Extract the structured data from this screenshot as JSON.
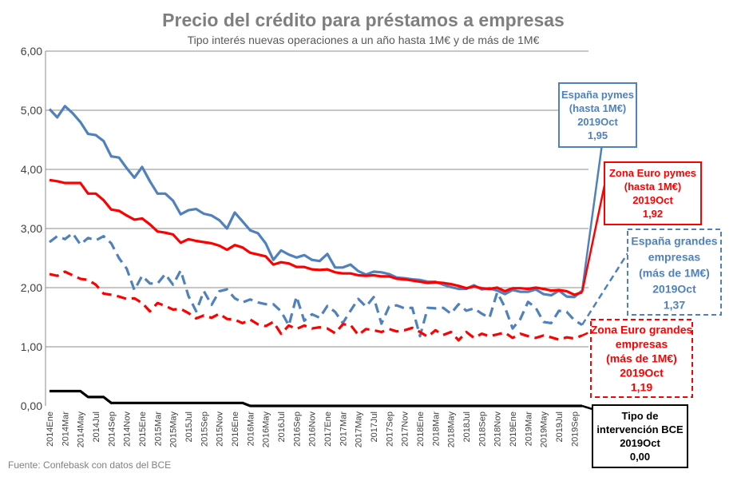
{
  "chart_data": {
    "type": "line",
    "title": "Precio del crédito para préstamos a empresas",
    "subtitle": "Tipo interés nuevas operaciones a un año hasta 1M€ y de más de 1M€",
    "source": "Fuente: Confebask con datos del BCE",
    "ylim": [
      0,
      6
    ],
    "y_ticks": [
      "0,00",
      "1,00",
      "2,00",
      "3,00",
      "4,00",
      "5,00",
      "6,00"
    ],
    "grid": true,
    "x": [
      "2014Ene",
      "2014Feb",
      "2014Mar",
      "2014Abr",
      "2014May",
      "2014Jun",
      "2014Jul",
      "2014Ago",
      "2014Sep",
      "2014Oct",
      "2014Nov",
      "2014Dic",
      "2015Ene",
      "2015Feb",
      "2015Mar",
      "2015Abr",
      "2015May",
      "2015Jun",
      "2015Jul",
      "2015Ago",
      "2015Sep",
      "2015Oct",
      "2015Nov",
      "2015Dic",
      "2016Ene",
      "2016Feb",
      "2016Mar",
      "2016Abr",
      "2016May",
      "2016Jun",
      "2016Jul",
      "2016Ago",
      "2016Sep",
      "2016Oct",
      "2016Nov",
      "2016Dic",
      "2017Ene",
      "2017Feb",
      "2017Mar",
      "2017Abr",
      "2017May",
      "2017Jun",
      "2017Jul",
      "2017Ago",
      "2017Sep",
      "2017Oct",
      "2017Nov",
      "2017Dic",
      "2018Ene",
      "2018Feb",
      "2018Mar",
      "2018Abr",
      "2018May",
      "2018Jun",
      "2018Jul",
      "2018Ago",
      "2018Sep",
      "2018Oct",
      "2018Nov",
      "2018Dic",
      "2019Ene",
      "2019Feb",
      "2019Mar",
      "2019Abr",
      "2019May",
      "2019Jun",
      "2019Jul",
      "2019Ago",
      "2019Sep",
      "2019Oct"
    ],
    "x_tick_labels": [
      "2014Ene",
      "2014Mar",
      "2014May",
      "2014Jul",
      "2014Sep",
      "2014Nov",
      "2015Ene",
      "2015Mar",
      "2015May",
      "2015Jul",
      "2015Sep",
      "2015Nov",
      "2016Ene",
      "2016Mar",
      "2016May",
      "2016Jul",
      "2016Sep",
      "2016Nov",
      "2017Ene",
      "2017Mar",
      "2017May",
      "2017Jul",
      "2017Sep",
      "2017Nov",
      "2018Ene",
      "2018Mar",
      "2018May",
      "2018Jul",
      "2018Sep",
      "2018Nov",
      "2019Ene",
      "2019Mar",
      "2019May",
      "2019Jul",
      "2019Sep"
    ],
    "series": [
      {
        "color": "#4f81bd",
        "dash": false,
        "values": [
          5.02,
          4.88,
          5.07,
          4.95,
          4.8,
          4.6,
          4.58,
          4.48,
          4.22,
          4.2,
          4.02,
          3.86,
          4.04,
          3.8,
          3.59,
          3.59,
          3.47,
          3.24,
          3.31,
          3.33,
          3.25,
          3.22,
          3.14,
          3.0,
          3.27,
          3.12,
          2.97,
          2.92,
          2.75,
          2.47,
          2.63,
          2.56,
          2.51,
          2.55,
          2.47,
          2.45,
          2.57,
          2.34,
          2.34,
          2.39,
          2.28,
          2.22,
          2.27,
          2.26,
          2.23,
          2.17,
          2.16,
          2.14,
          2.13,
          2.1,
          2.1,
          2.05,
          2.01,
          1.98,
          1.98,
          2.04,
          1.97,
          1.99,
          1.95,
          1.89,
          1.96,
          1.93,
          1.93,
          1.97,
          1.89,
          1.87,
          1.95,
          1.85,
          1.84,
          1.95
        ]
      },
      {
        "color": "#ff0000",
        "dash": false,
        "values": [
          3.82,
          3.8,
          3.77,
          3.77,
          3.77,
          3.59,
          3.59,
          3.48,
          3.32,
          3.3,
          3.22,
          3.15,
          3.17,
          3.07,
          2.95,
          2.93,
          2.9,
          2.76,
          2.82,
          2.79,
          2.77,
          2.75,
          2.71,
          2.64,
          2.72,
          2.68,
          2.59,
          2.56,
          2.53,
          2.39,
          2.43,
          2.41,
          2.35,
          2.35,
          2.31,
          2.3,
          2.31,
          2.26,
          2.24,
          2.24,
          2.21,
          2.2,
          2.21,
          2.19,
          2.19,
          2.15,
          2.14,
          2.12,
          2.1,
          2.08,
          2.09,
          2.08,
          2.06,
          2.03,
          1.99,
          2.02,
          1.99,
          1.98,
          2.0,
          1.94,
          1.99,
          1.99,
          1.98,
          2.0,
          1.98,
          1.95,
          1.96,
          1.94,
          1.88,
          1.92
        ]
      },
      {
        "color": "#4f81bd",
        "dash": true,
        "values": [
          2.77,
          2.87,
          2.82,
          2.92,
          2.73,
          2.84,
          2.8,
          2.87,
          2.75,
          2.5,
          2.32,
          1.96,
          2.2,
          2.07,
          2.07,
          2.23,
          2.05,
          2.29,
          1.86,
          1.6,
          1.94,
          1.71,
          1.94,
          1.97,
          1.82,
          1.75,
          1.8,
          1.75,
          1.72,
          1.72,
          1.6,
          1.36,
          1.85,
          1.44,
          1.55,
          1.49,
          1.69,
          1.59,
          1.4,
          1.61,
          1.81,
          1.68,
          1.84,
          1.39,
          1.68,
          1.7,
          1.65,
          1.66,
          1.18,
          1.66,
          1.65,
          1.66,
          1.56,
          1.72,
          1.61,
          1.65,
          1.56,
          1.49,
          1.92,
          1.67,
          1.31,
          1.47,
          1.76,
          1.66,
          1.42,
          1.4,
          1.61,
          1.59,
          1.45,
          1.37
        ]
      },
      {
        "color": "#ff0000",
        "dash": true,
        "values": [
          2.23,
          2.2,
          2.27,
          2.21,
          2.15,
          2.13,
          2.05,
          1.9,
          1.88,
          1.85,
          1.81,
          1.82,
          1.74,
          1.6,
          1.74,
          1.69,
          1.63,
          1.64,
          1.57,
          1.48,
          1.53,
          1.49,
          1.56,
          1.47,
          1.46,
          1.4,
          1.46,
          1.38,
          1.35,
          1.42,
          1.22,
          1.36,
          1.3,
          1.36,
          1.31,
          1.33,
          1.31,
          1.23,
          1.38,
          1.37,
          1.2,
          1.3,
          1.28,
          1.25,
          1.3,
          1.26,
          1.28,
          1.32,
          1.25,
          1.17,
          1.28,
          1.2,
          1.25,
          1.11,
          1.25,
          1.15,
          1.22,
          1.18,
          1.21,
          1.24,
          1.15,
          1.22,
          1.18,
          1.15,
          1.19,
          1.16,
          1.12,
          1.16,
          1.14,
          1.19
        ]
      },
      {
        "color": "#000000",
        "dash": false,
        "values": [
          0.25,
          0.25,
          0.25,
          0.25,
          0.25,
          0.15,
          0.15,
          0.15,
          0.05,
          0.05,
          0.05,
          0.05,
          0.05,
          0.05,
          0.05,
          0.05,
          0.05,
          0.05,
          0.05,
          0.05,
          0.05,
          0.05,
          0.05,
          0.05,
          0.05,
          0.05,
          0.0,
          0.0,
          0.0,
          0.0,
          0.0,
          0.0,
          0.0,
          0.0,
          0.0,
          0.0,
          0.0,
          0.0,
          0.0,
          0.0,
          0.0,
          0.0,
          0.0,
          0.0,
          0.0,
          0.0,
          0.0,
          0.0,
          0.0,
          0.0,
          0.0,
          0.0,
          0.0,
          0.0,
          0.0,
          0.0,
          0.0,
          0.0,
          0.0,
          0.0,
          0.0,
          0.0,
          0.0,
          0.0,
          0.0,
          0.0,
          0.0,
          0.0,
          0.0,
          0.0
        ]
      }
    ],
    "annotations": [
      {
        "lines": [
          "España pymes",
          "(hasta 1M€)",
          "2019Oct",
          "1,95"
        ],
        "color": "#4f81bd",
        "border": "#4f81bd",
        "dashed": false,
        "series": 0
      },
      {
        "lines": [
          "Zona Euro pymes",
          "(hasta 1M€)",
          "2019Oct",
          "1,92"
        ],
        "color": "#ff0000",
        "border": "#ff0000",
        "dashed": false,
        "series": 1
      },
      {
        "lines": [
          "España grandes",
          "empresas",
          "(más de 1M€)",
          "2019Oct",
          "1,37"
        ],
        "color": "#4f81bd",
        "border": "#4f81bd",
        "dashed": true,
        "series": 2
      },
      {
        "lines": [
          "Zona Euro grandes",
          "empresas",
          "(más de 1M€)",
          "2019Oct",
          "1,19"
        ],
        "color": "#ff0000",
        "border": "#ff0000",
        "dashed": true,
        "series": 3
      },
      {
        "lines": [
          "Tipo de",
          "intervención BCE",
          "2019Oct",
          "0,00"
        ],
        "color": "#000000",
        "border": "#000000",
        "dashed": false,
        "series": 4
      }
    ]
  }
}
